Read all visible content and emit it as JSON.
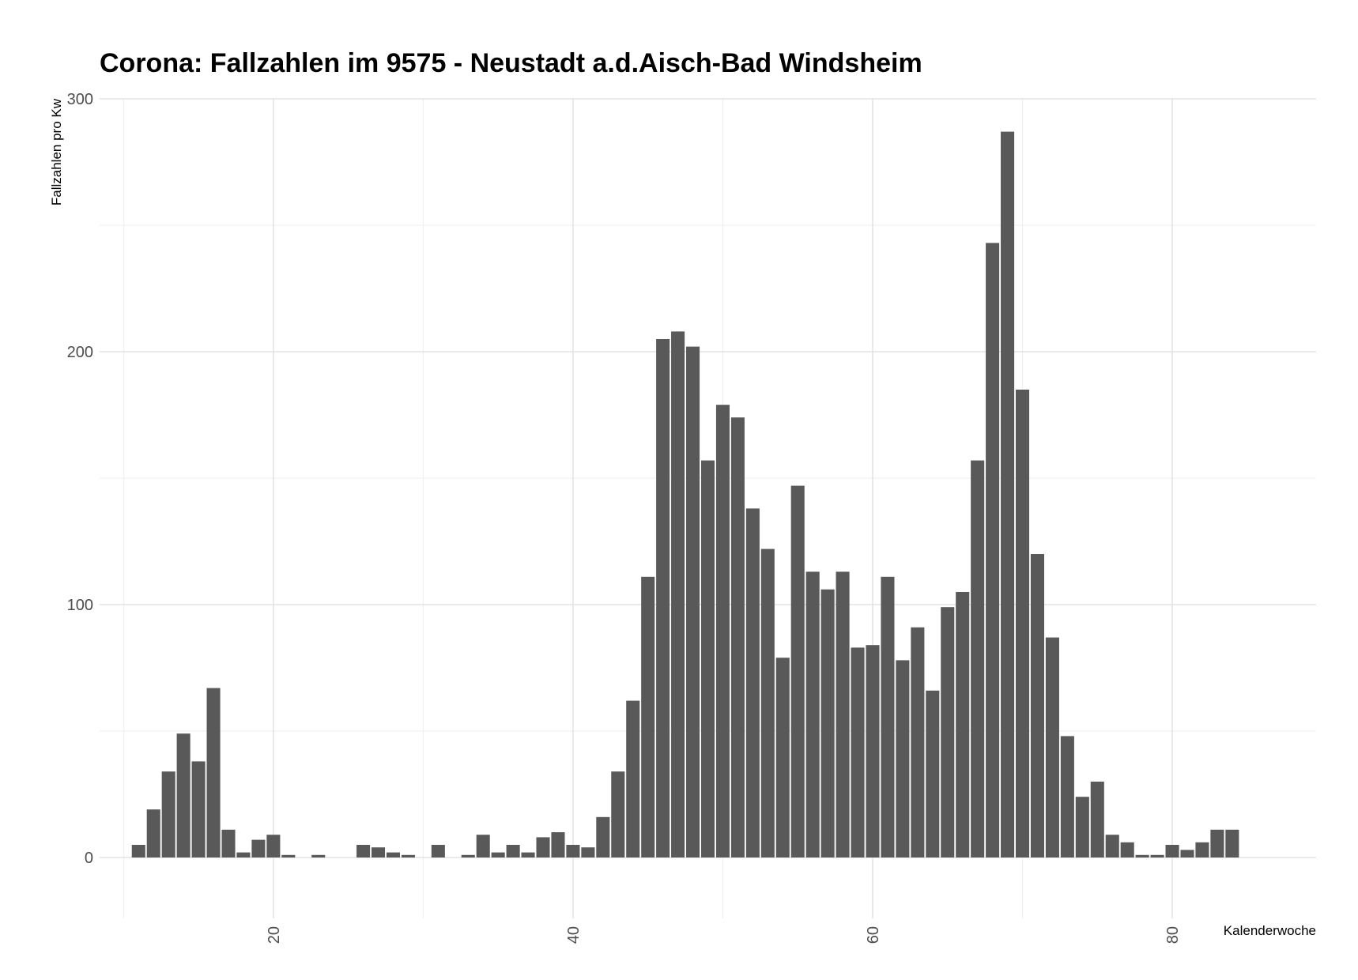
{
  "chart_data": {
    "type": "bar",
    "title": "Corona: Fallzahlen im 9575 - Neustadt a.d.Aisch-Bad Windsheim",
    "xlabel": "Kalenderwoche",
    "ylabel": "Fallzahlen pro Kw",
    "xlim": [
      8.4,
      89.6
    ],
    "ylim": [
      -15,
      300
    ],
    "x_ticks": [
      20,
      40,
      60,
      80
    ],
    "x_tick_labels": [
      "20",
      "40",
      "60",
      "80"
    ],
    "y_ticks": [
      0,
      100,
      200,
      300
    ],
    "y_tick_labels": [
      "0",
      "100",
      "200",
      "300"
    ],
    "grid": true,
    "legend": "none",
    "x": [
      11,
      12,
      13,
      14,
      15,
      16,
      17,
      18,
      19,
      20,
      21,
      22,
      23,
      24,
      25,
      26,
      27,
      28,
      29,
      30,
      31,
      32,
      33,
      34,
      35,
      36,
      37,
      38,
      39,
      40,
      41,
      42,
      43,
      44,
      45,
      46,
      47,
      48,
      49,
      50,
      51,
      52,
      53,
      54,
      55,
      56,
      57,
      58,
      59,
      60,
      61,
      62,
      63,
      64,
      65,
      66,
      67,
      68,
      69,
      70,
      71,
      72,
      73,
      74,
      75,
      76,
      77,
      78,
      79,
      80,
      81,
      82,
      83,
      84
    ],
    "values": [
      5,
      19,
      34,
      49,
      38,
      67,
      11,
      2,
      7,
      9,
      1,
      0,
      1,
      0,
      0,
      5,
      4,
      2,
      1,
      0,
      5,
      0,
      1,
      9,
      2,
      5,
      2,
      8,
      10,
      5,
      4,
      16,
      34,
      62,
      111,
      205,
      208,
      202,
      157,
      179,
      174,
      138,
      122,
      79,
      147,
      113,
      106,
      113,
      83,
      84,
      111,
      78,
      91,
      66,
      99,
      105,
      157,
      243,
      287,
      185,
      120,
      87,
      48,
      24,
      30,
      9,
      6,
      1,
      1,
      5,
      3,
      6,
      11,
      11
    ]
  }
}
